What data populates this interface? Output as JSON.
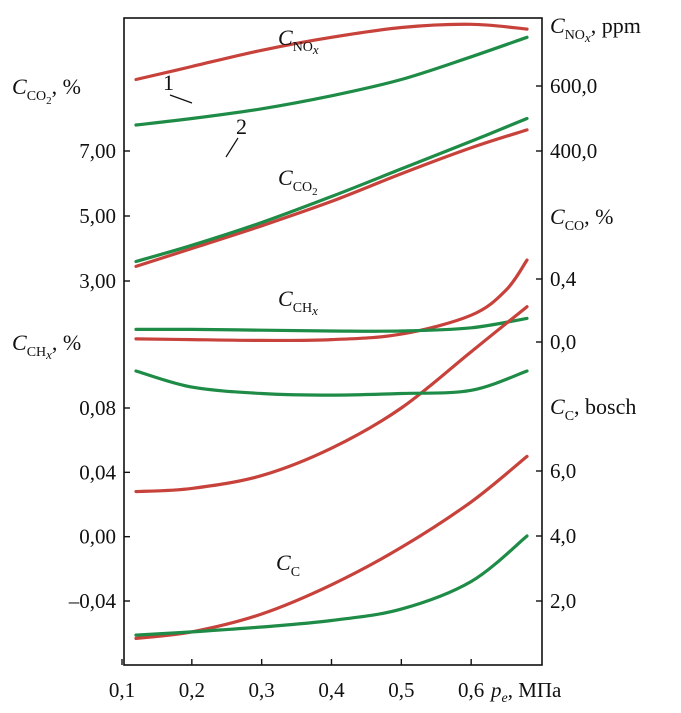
{
  "chart_data": {
    "type": "line",
    "x_ticks": [
      "0,1",
      "0,2",
      "0,3",
      "0,4",
      "0,5",
      "0,6"
    ],
    "x_label": {
      "symbol": "p",
      "sub": "e",
      "unit": ", МПа"
    },
    "x_range": [
      0.1,
      0.7
    ],
    "axes": {
      "left_co2": {
        "symbol": "C",
        "sub": "CO",
        "sub2": "2",
        "unit": ", %",
        "ticks": [
          "7,00",
          "5,00",
          "3,00"
        ],
        "values": [
          7,
          5,
          3
        ]
      },
      "left_ch": {
        "symbol": "C",
        "sub": "CH",
        "subx": "x",
        "unit": ", %",
        "ticks": [
          "0,08",
          "0,04",
          "0,00",
          "–0,04"
        ],
        "values": [
          0.08,
          0.04,
          0,
          -0.04
        ]
      },
      "right_nox": {
        "symbol": "C",
        "sub": "NO",
        "subx": "x",
        "unit": ", ppm",
        "ticks": [
          "600,0",
          "400,0"
        ],
        "values": [
          600,
          400
        ]
      },
      "right_co": {
        "symbol": "C",
        "sub": "CO",
        "unit": ", %",
        "ticks": [
          "0,4",
          "0,0"
        ],
        "values": [
          0.4,
          0
        ]
      },
      "right_c": {
        "symbol": "C",
        "sub": "C",
        "unit": ", bosch",
        "ticks": [
          "6,0",
          "4,0",
          "2,0"
        ],
        "values": [
          6,
          4,
          2
        ]
      }
    },
    "curve_labels": {
      "nox": {
        "symbol": "C",
        "sub": "NO",
        "subx": "x"
      },
      "co2": {
        "symbol": "C",
        "sub": "CO",
        "sub2": "2"
      },
      "ch": {
        "symbol": "C",
        "sub": "CH",
        "subx": "x"
      },
      "c": {
        "symbol": "C",
        "sub": "C"
      }
    },
    "series_labels": [
      "1",
      "2"
    ],
    "colors": {
      "series1": "#c8423c",
      "series2": "#1e8c47"
    },
    "series": [
      {
        "quantity": "nox",
        "series": "1",
        "axis": "right_nox",
        "x": [
          0.12,
          0.2,
          0.3,
          0.4,
          0.5,
          0.6,
          0.68
        ],
        "y": [
          620,
          660,
          710,
          750,
          780,
          790,
          775
        ]
      },
      {
        "quantity": "nox",
        "series": "2",
        "axis": "right_nox",
        "x": [
          0.12,
          0.2,
          0.3,
          0.4,
          0.5,
          0.6,
          0.68
        ],
        "y": [
          480,
          500,
          530,
          570,
          620,
          690,
          750
        ]
      },
      {
        "quantity": "co2",
        "series": "1",
        "axis": "left_co2",
        "x": [
          0.12,
          0.2,
          0.3,
          0.4,
          0.5,
          0.6,
          0.68
        ],
        "y": [
          3.45,
          4.0,
          4.7,
          5.45,
          6.3,
          7.1,
          7.65
        ]
      },
      {
        "quantity": "co2",
        "series": "2",
        "axis": "left_co2",
        "x": [
          0.12,
          0.2,
          0.3,
          0.4,
          0.5,
          0.6,
          0.68
        ],
        "y": [
          3.6,
          4.1,
          4.8,
          5.6,
          6.45,
          7.3,
          8.0
        ]
      },
      {
        "quantity": "co",
        "series": "1",
        "axis": "right_co",
        "x": [
          0.12,
          0.2,
          0.3,
          0.4,
          0.5,
          0.6,
          0.65,
          0.68
        ],
        "y": [
          0.02,
          0.015,
          0.01,
          0.015,
          0.05,
          0.17,
          0.33,
          0.52
        ]
      },
      {
        "quantity": "co",
        "series": "2",
        "axis": "right_co",
        "x": [
          0.12,
          0.2,
          0.3,
          0.4,
          0.5,
          0.6,
          0.68
        ],
        "y": [
          0.08,
          0.08,
          0.075,
          0.07,
          0.07,
          0.09,
          0.15
        ]
      },
      {
        "quantity": "ch",
        "series": "1",
        "axis": "left_ch",
        "x": [
          0.12,
          0.2,
          0.3,
          0.4,
          0.5,
          0.6,
          0.68
        ],
        "y": [
          0.028,
          0.03,
          0.038,
          0.055,
          0.08,
          0.115,
          0.143
        ]
      },
      {
        "quantity": "ch",
        "series": "2",
        "axis": "left_ch",
        "x": [
          0.12,
          0.2,
          0.3,
          0.4,
          0.5,
          0.6,
          0.68
        ],
        "y": [
          0.103,
          0.093,
          0.089,
          0.088,
          0.089,
          0.091,
          0.103
        ]
      },
      {
        "quantity": "c",
        "series": "1",
        "axis": "right_c",
        "x": [
          0.12,
          0.2,
          0.3,
          0.4,
          0.5,
          0.6,
          0.68
        ],
        "y": [
          0.85,
          1.05,
          1.6,
          2.5,
          3.65,
          5.05,
          6.45
        ]
      },
      {
        "quantity": "c",
        "series": "2",
        "axis": "right_c",
        "x": [
          0.12,
          0.2,
          0.3,
          0.4,
          0.5,
          0.6,
          0.68
        ],
        "y": [
          0.95,
          1.05,
          1.2,
          1.4,
          1.75,
          2.6,
          4.0
        ]
      }
    ]
  }
}
